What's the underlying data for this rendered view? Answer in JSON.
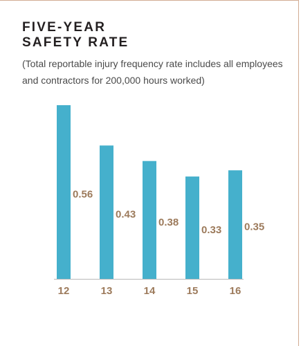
{
  "chart_data": {
    "type": "bar",
    "title": "FIVE-YEAR SAFETY RATE",
    "subtitle": "(Total reportable injury frequency rate includes all employees and contractors for 200,000 hours worked)",
    "categories": [
      "12",
      "13",
      "14",
      "15",
      "16"
    ],
    "values": [
      0.56,
      0.43,
      0.38,
      0.33,
      0.35
    ],
    "color": "#45b0cc"
  }
}
